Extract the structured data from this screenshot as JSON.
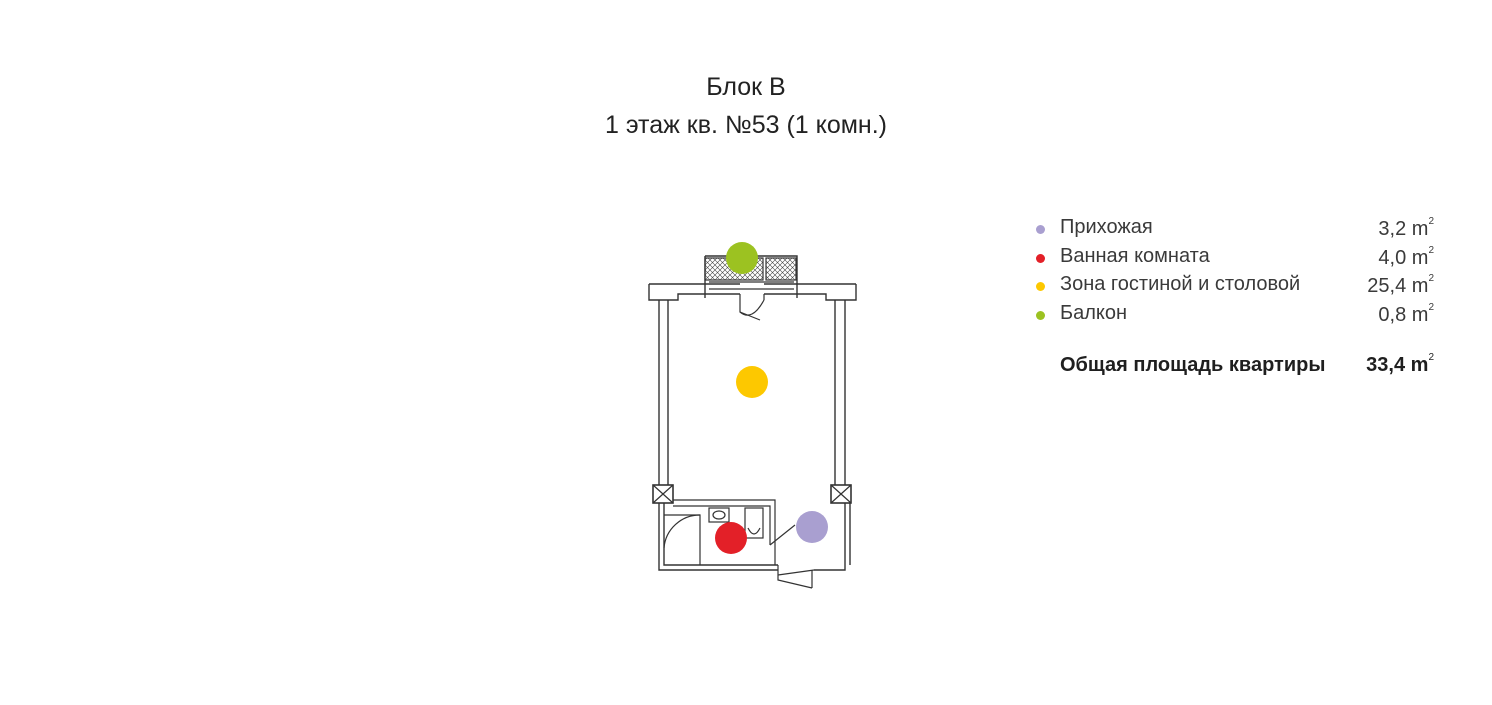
{
  "title": {
    "line1": "Блок В",
    "line2": "1 этаж кв. №53 (1 комн.)"
  },
  "legend": {
    "unit": "m",
    "unit_power": "2",
    "items": [
      {
        "name": "Прихожая",
        "area": "3,2",
        "color": "#a99fd0"
      },
      {
        "name": "Ванная комната",
        "area": "4,0",
        "color": "#e32028"
      },
      {
        "name": "Зона гостиной и столовой",
        "area": "25,4",
        "color": "#fdc800"
      },
      {
        "name": "Балкон",
        "area": "0,8",
        "color": "#9cc221"
      }
    ],
    "total": {
      "label": "Общая площадь квартиры",
      "area": "33,4"
    }
  },
  "plan_markers": [
    {
      "room": "Балкон",
      "color": "#9cc221"
    },
    {
      "room": "Зона гостиной и столовой",
      "color": "#fdc800"
    },
    {
      "room": "Ванная комната",
      "color": "#e32028"
    },
    {
      "room": "Прихожая",
      "color": "#a99fd0"
    }
  ]
}
